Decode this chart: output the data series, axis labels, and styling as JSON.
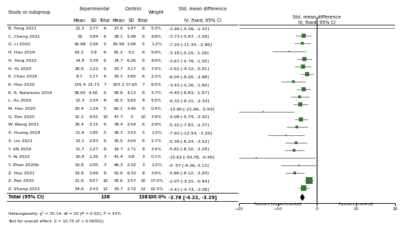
{
  "studies": [
    {
      "name": "B. Feng 2021",
      "exp_mean": "21.5",
      "exp_sd": "1.77",
      "exp_n": "6",
      "ctrl_mean": "27.6",
      "ctrl_sd": "1.47",
      "ctrl_n": "6",
      "weight": 5.3,
      "smd": -3.46,
      "ci_lo": -5.49,
      "ci_hi": -1.43,
      "ci_str": "-3.46 [-5.49, -1.43]"
    },
    {
      "name": "C. Cheng 2021",
      "exp_mean": "19",
      "exp_sd": "3.84",
      "exp_n": "6",
      "ctrl_mean": "38.1",
      "ctrl_sd": "5.48",
      "ctrl_n": "6",
      "weight": 4.8,
      "smd": -3.73,
      "ci_lo": -5.87,
      "ci_hi": -1.58,
      "ci_str": "-3.73 [-5.87, -1.58]"
    },
    {
      "name": "G. Li 2020",
      "exp_mean": "16.98",
      "exp_sd": "1.58",
      "exp_n": "5",
      "ctrl_mean": "29.58",
      "ctrl_sd": "1.58",
      "ctrl_n": "5",
      "weight": 1.2,
      "smd": -7.2,
      "ci_lo": -11.44,
      "ci_hi": -2.96,
      "ci_str": "-7.20 [-11.44, -2.96]"
    },
    {
      "name": "H. Hao 2019",
      "exp_mean": "62.2",
      "exp_sd": "5.9",
      "exp_n": "6",
      "ctrl_mean": "81.2",
      "ctrl_sd": "5.1",
      "ctrl_n": "6",
      "weight": 5.9,
      "smd": -3.18,
      "ci_lo": -5.1,
      "ci_hi": -1.26,
      "ci_str": "-3.18 [-5.10, -1.26]"
    },
    {
      "name": "H. Yang 2022",
      "exp_mean": "14.8",
      "exp_sd": "3.29",
      "exp_n": "6",
      "ctrl_mean": "34.7",
      "ctrl_sd": "6.26",
      "ctrl_n": "6",
      "weight": 4.9,
      "smd": -3.67,
      "ci_lo": -5.79,
      "ci_hi": -1.55,
      "ci_str": "-3.67 [-5.79, -1.55]"
    },
    {
      "name": "H. Yu 2020",
      "exp_mean": "26.9",
      "exp_sd": "1.22",
      "exp_n": "6",
      "ctrl_mean": "33.7",
      "ctrl_sd": "3.17",
      "ctrl_n": "6",
      "weight": 7.5,
      "smd": -2.61,
      "ci_lo": -4.32,
      "ci_hi": -0.91,
      "ci_str": "-2.61 [-4.32, -0.91]"
    },
    {
      "name": "K. Chen 2016",
      "exp_mean": "6.7",
      "exp_sd": "1.17",
      "exp_n": "6",
      "ctrl_mean": "20.1",
      "ctrl_sd": "2.65",
      "ctrl_n": "6",
      "weight": 2.2,
      "smd": -6.04,
      "ci_lo": -9.2,
      "ci_hi": -2.88,
      "ci_str": "-6.04 [-9.20, -2.88]"
    },
    {
      "name": "K. Hou 2020",
      "exp_mean": "135.4",
      "exp_sd": "13.73",
      "exp_n": "7",
      "ctrl_mean": "193.3",
      "ctrl_sd": "17.65",
      "ctrl_n": "7",
      "weight": 6.5,
      "smd": -3.43,
      "ci_lo": -5.26,
      "ci_hi": -1.6,
      "ci_str": "-3.43 [-5.26, -1.60]"
    },
    {
      "name": "K. R. Nalamolu 2019",
      "exp_mean": "38.65",
      "exp_sd": "4.36",
      "exp_n": "6",
      "ctrl_mean": "58.9",
      "ctrl_sd": "4.13",
      "ctrl_n": "6",
      "weight": 3.7,
      "smd": -4.4,
      "ci_lo": -6.83,
      "ci_hi": -1.97,
      "ci_str": "-4.40 [-6.83, -1.97]"
    },
    {
      "name": "L. Xu 2020",
      "exp_mean": "12.3",
      "exp_sd": "2.24",
      "exp_n": "8",
      "ctrl_mean": "32.5",
      "ctrl_sd": "5.83",
      "ctrl_n": "8",
      "weight": 5.5,
      "smd": -4.32,
      "ci_lo": -6.31,
      "ci_hi": -2.34,
      "ci_str": "-4.32 [-6.31, -2.34]"
    },
    {
      "name": "M. Han 2020",
      "exp_mean": "20.4",
      "exp_sd": "1.24",
      "exp_n": "5",
      "ctrl_mean": "60.1",
      "ctrl_sd": "3.46",
      "ctrl_n": "5",
      "weight": 0.4,
      "smd": -13.8,
      "ci_lo": -21.66,
      "ci_hi": -5.93,
      "ci_str": "-13.80 [-21.66, -5.93]"
    },
    {
      "name": "Q. Pan 2020",
      "exp_mean": "31.3",
      "exp_sd": "4.55",
      "exp_n": "10",
      "ctrl_mean": "47.7",
      "ctrl_sd": "3",
      "ctrl_n": "10",
      "weight": 7.9,
      "smd": -4.08,
      "ci_lo": -5.74,
      "ci_hi": -2.42,
      "ci_str": "-4.08 [-5.74, -2.42]"
    },
    {
      "name": "W. Wang 2021",
      "exp_mean": "26.4",
      "exp_sd": "2.15",
      "exp_n": "6",
      "ctrl_mean": "39.4",
      "ctrl_sd": "2.54",
      "ctrl_n": "6",
      "weight": 2.9,
      "smd": -5.1,
      "ci_lo": -7.83,
      "ci_hi": -2.37,
      "ci_str": "-5.10 [-7.83, -2.37]"
    },
    {
      "name": "X. Huang 2018",
      "exp_mean": "11.6",
      "exp_sd": "1.85",
      "exp_n": "5",
      "ctrl_mean": "36.3",
      "ctrl_sd": "3.53",
      "ctrl_n": "5",
      "weight": 1.0,
      "smd": -7.92,
      "ci_lo": -12.54,
      "ci_hi": -3.29,
      "ci_str": "-7.92 [-12.54, -3.29]"
    },
    {
      "name": "X. Liu 2021",
      "exp_mean": "13.1",
      "exp_sd": "2.93",
      "exp_n": "6",
      "ctrl_mean": "30.5",
      "ctrl_sd": "3.04",
      "ctrl_n": "6",
      "weight": 2.7,
      "smd": -5.38,
      "ci_lo": -8.24,
      "ci_hi": -2.52,
      "ci_str": "-5.38 [-8.24, -2.52]"
    },
    {
      "name": "Y. AN 2019",
      "exp_mean": "11.7",
      "exp_sd": "1.27",
      "exp_n": "8",
      "ctrl_mean": "24.7",
      "ctrl_sd": "2.71",
      "ctrl_n": "8",
      "weight": 3.4,
      "smd": -5.81,
      "ci_lo": -8.32,
      "ci_hi": -3.29,
      "ci_str": "-5.81 [-8.32, -3.29]"
    },
    {
      "name": "Y. Ye 2022",
      "exp_mean": "20.8",
      "exp_sd": "1.26",
      "exp_n": "3",
      "ctrl_mean": "41.4",
      "ctrl_sd": "0.8",
      "ctrl_n": "3",
      "weight": 0.1,
      "smd": -15.62,
      "ci_lo": -30.78,
      "ci_hi": -0.45,
      "ci_str": "-15.62 [-30.78, -0.45]"
    },
    {
      "name": "Y. Zhao 2020b",
      "exp_mean": "33.8",
      "exp_sd": "2.05",
      "exp_n": "3",
      "ctrl_mean": "46.3",
      "ctrl_sd": "2.32",
      "ctrl_n": "3",
      "weight": 1.0,
      "smd": -4.57,
      "ci_lo": -9.26,
      "ci_hi": 0.12,
      "ci_str": "-4. 57 [-9.26, 0.12]"
    },
    {
      "name": "Z. Hou 2021",
      "exp_mean": "23.8",
      "exp_sd": "2.69",
      "exp_n": "8",
      "ctrl_mean": "52.9",
      "ctrl_sd": "6.33",
      "ctrl_n": "8",
      "weight": 3.6,
      "smd": -5.66,
      "ci_lo": -8.12,
      "ci_hi": -3.2,
      "ci_str": "-5.66 [-8.12, -3.20]"
    },
    {
      "name": "Z. Pan 2020",
      "exp_mean": "21.9",
      "exp_sd": "8.57",
      "exp_n": "10",
      "ctrl_mean": "35.6",
      "ctrl_sd": "2.57",
      "ctrl_n": "10",
      "weight": 17.0,
      "smd": -2.07,
      "ci_lo": -3.21,
      "ci_hi": -0.94,
      "ci_str": "-2.07 [-3.21, -0.94]"
    },
    {
      "name": "Z. Zhang 2021",
      "exp_mean": "24.6",
      "exp_sd": "2.43",
      "exp_n": "12",
      "ctrl_mean": "33.7",
      "ctrl_sd": "2.72",
      "ctrl_n": "12",
      "weight": 12.5,
      "smd": -3.41,
      "ci_lo": -4.73,
      "ci_hi": -2.08,
      "ci_str": "-3.41 [-4.73, -2.08]"
    }
  ],
  "total_exp_n": 138,
  "total_ctrl_n": 138,
  "total_smd": -3.76,
  "total_ci_lo": -4.22,
  "total_ci_hi": -3.29,
  "total_weight": "100.0%",
  "total_ci_str": "-3.76 [-4.22, -3.29]",
  "heterogeneity_text": "Heterogeneity: χ² = 35.14, df = 20 (P = 0.02); I² = 43%",
  "overall_effect_text": "Test for overall effect: Z = 15.75 (P < 0.00001)",
  "x_min": -20,
  "x_max": 20,
  "x_ticks": [
    -20,
    -10,
    0,
    10,
    20
  ],
  "favours_left": "Favours [experimental]",
  "favours_right": "Favours [control]",
  "ci_line_color": "#808080",
  "marker_color": "#2d7a2d",
  "diamond_color": "#000000"
}
